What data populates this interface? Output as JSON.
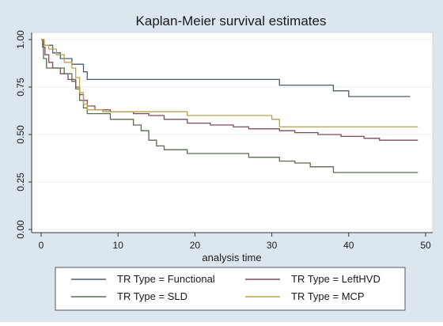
{
  "chart_data": {
    "type": "line",
    "step": true,
    "title": "Kaplan-Meier survival estimates",
    "xlabel": "analysis time",
    "ylabel": "",
    "xlim": [
      0,
      50
    ],
    "ylim": [
      0,
      1
    ],
    "x_ticks": [
      0,
      10,
      20,
      30,
      40,
      50
    ],
    "x_tick_labels": [
      "0",
      "10",
      "20",
      "30",
      "40",
      "50"
    ],
    "y_ticks": [
      0,
      0.25,
      0.5,
      0.75,
      1
    ],
    "y_tick_labels": [
      "0.00",
      "0.25",
      "0.50",
      "0.75",
      "1.00"
    ],
    "grid": "horizontal",
    "legend_position": "bottom",
    "background": "#dce6ee",
    "plot_background": "#ffffff",
    "series": [
      {
        "name": "TR Type = Functional",
        "color": "#4a5f6b",
        "points": [
          [
            0,
            1.0
          ],
          [
            0.3,
            0.97
          ],
          [
            1.5,
            0.93
          ],
          [
            2.5,
            0.9
          ],
          [
            4,
            0.87
          ],
          [
            5.5,
            0.83
          ],
          [
            6,
            0.79
          ],
          [
            31,
            0.76
          ],
          [
            38,
            0.73
          ],
          [
            40,
            0.7
          ],
          [
            48,
            0.7
          ]
        ]
      },
      {
        "name": "TR Type = LeftHVD",
        "color": "#7d4b5a",
        "points": [
          [
            0,
            1.0
          ],
          [
            0.2,
            0.96
          ],
          [
            0.5,
            0.92
          ],
          [
            1,
            0.88
          ],
          [
            1.5,
            0.85
          ],
          [
            2.5,
            0.82
          ],
          [
            3.5,
            0.79
          ],
          [
            4.5,
            0.75
          ],
          [
            5,
            0.71
          ],
          [
            5.5,
            0.68
          ],
          [
            6,
            0.65
          ],
          [
            7,
            0.63
          ],
          [
            9,
            0.62
          ],
          [
            12,
            0.61
          ],
          [
            14,
            0.6
          ],
          [
            16,
            0.58
          ],
          [
            19,
            0.56
          ],
          [
            22,
            0.55
          ],
          [
            25,
            0.54
          ],
          [
            27,
            0.53
          ],
          [
            31,
            0.52
          ],
          [
            33,
            0.51
          ],
          [
            36,
            0.5
          ],
          [
            39,
            0.49
          ],
          [
            42,
            0.48
          ],
          [
            44,
            0.47
          ],
          [
            49,
            0.47
          ]
        ]
      },
      {
        "name": "TR Type = SLD",
        "color": "#5a6b52",
        "points": [
          [
            0,
            1.0
          ],
          [
            0.3,
            0.9
          ],
          [
            0.7,
            0.85
          ],
          [
            3,
            0.82
          ],
          [
            4,
            0.78
          ],
          [
            4.5,
            0.74
          ],
          [
            5,
            0.68
          ],
          [
            5.5,
            0.64
          ],
          [
            6,
            0.61
          ],
          [
            9,
            0.58
          ],
          [
            12,
            0.55
          ],
          [
            13,
            0.52
          ],
          [
            14,
            0.47
          ],
          [
            15,
            0.44
          ],
          [
            16,
            0.42
          ],
          [
            19,
            0.4
          ],
          [
            27,
            0.38
          ],
          [
            31,
            0.36
          ],
          [
            33,
            0.35
          ],
          [
            35,
            0.33
          ],
          [
            38,
            0.3
          ],
          [
            49,
            0.3
          ]
        ]
      },
      {
        "name": "TR Type = MCP",
        "color": "#b8a24a",
        "points": [
          [
            0,
            1.0
          ],
          [
            0.4,
            0.97
          ],
          [
            1,
            0.95
          ],
          [
            2,
            0.92
          ],
          [
            3,
            0.88
          ],
          [
            4,
            0.85
          ],
          [
            4.5,
            0.8
          ],
          [
            5,
            0.72
          ],
          [
            5.5,
            0.66
          ],
          [
            6,
            0.63
          ],
          [
            8,
            0.62
          ],
          [
            19,
            0.6
          ],
          [
            30,
            0.58
          ],
          [
            31,
            0.54
          ],
          [
            49,
            0.54
          ]
        ]
      }
    ]
  }
}
